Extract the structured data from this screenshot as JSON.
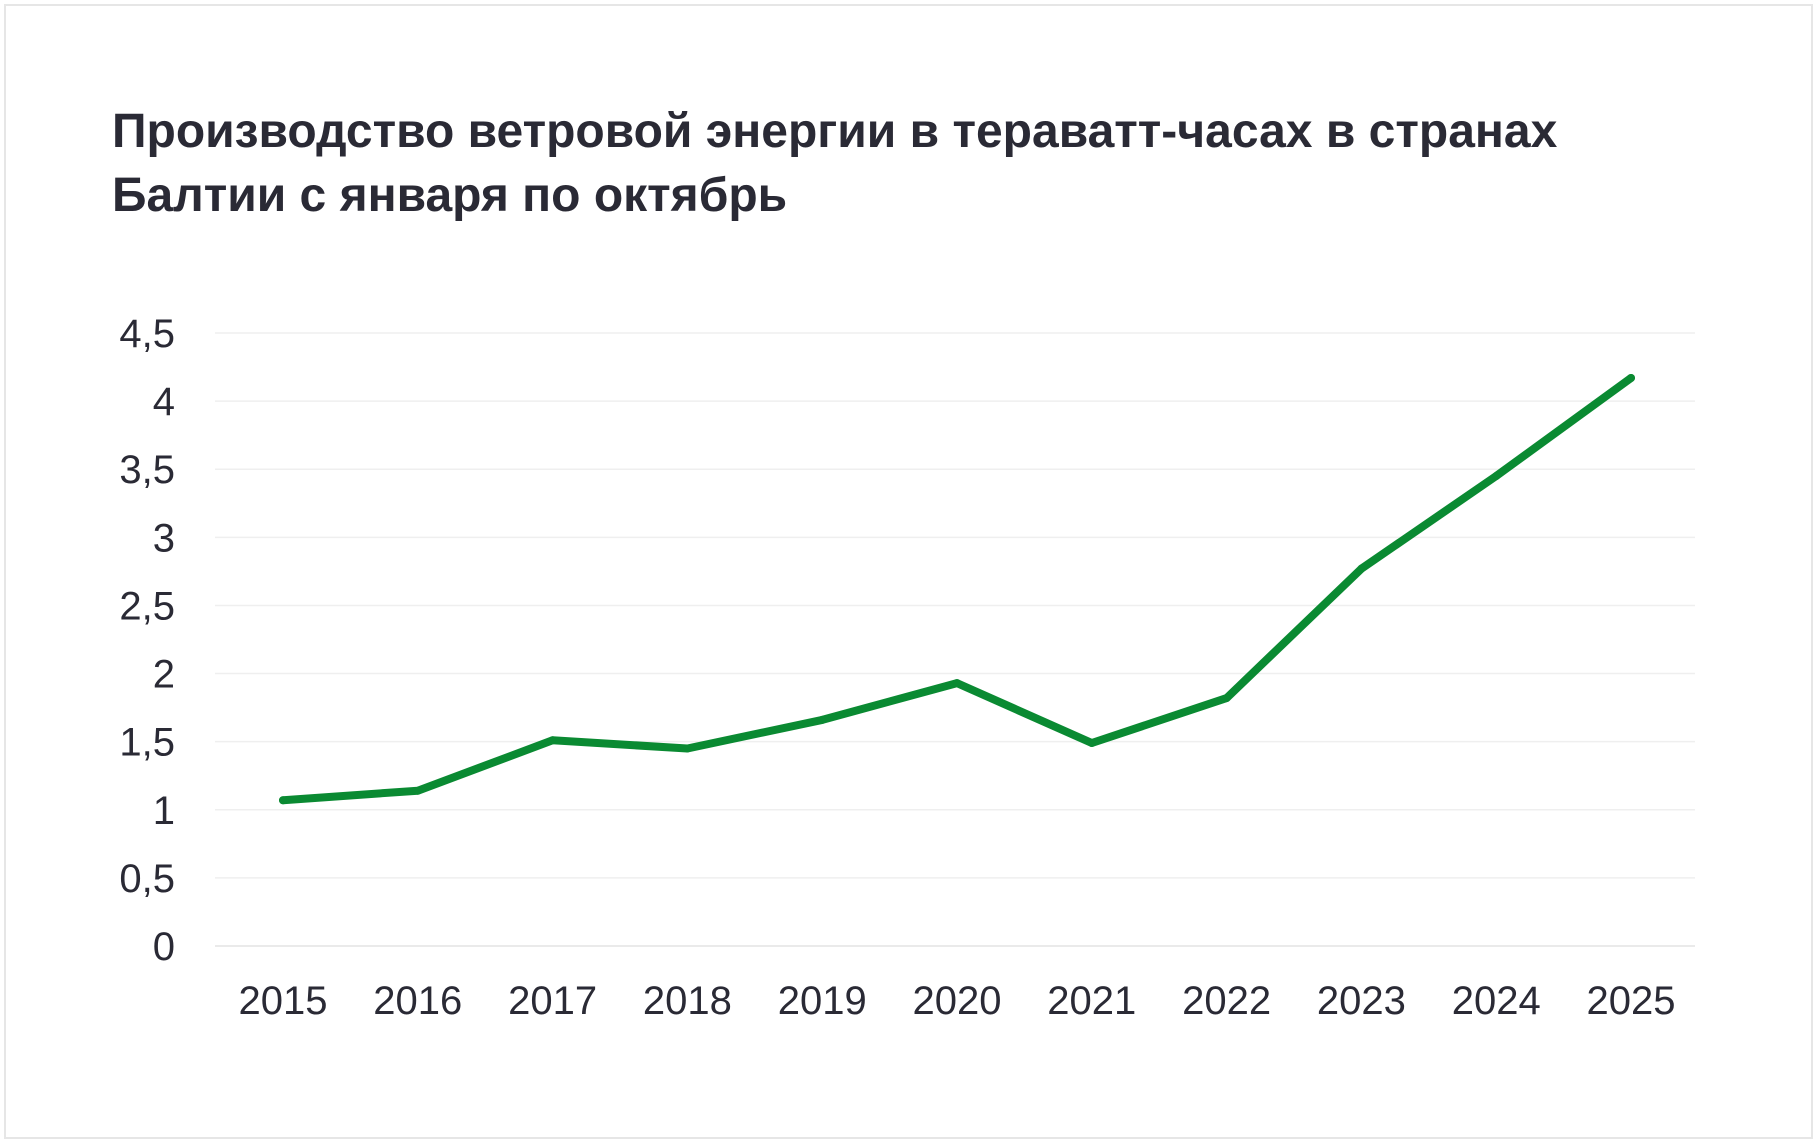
{
  "chart_data": {
    "type": "line",
    "title": "Производство ветровой энергии в тераватт-часах в странах Балтии с января по октябрь",
    "xlabel": "",
    "ylabel": "",
    "x": [
      "2015",
      "2016",
      "2017",
      "2018",
      "2019",
      "2020",
      "2021",
      "2022",
      "2023",
      "2024",
      "2025"
    ],
    "series": [
      {
        "name": "",
        "color": "#0a8a32",
        "values": [
          1.07,
          1.14,
          1.51,
          1.45,
          1.66,
          1.93,
          1.49,
          1.82,
          2.77,
          3.45,
          4.17
        ]
      }
    ],
    "ylim": [
      0,
      4.5
    ],
    "yticks": [
      0,
      0.5,
      1,
      1.5,
      2,
      2.5,
      3,
      3.5,
      4,
      4.5
    ],
    "ytick_labels": [
      "0",
      "0,5",
      "1",
      "1,5",
      "2",
      "2,5",
      "3",
      "3,5",
      "4",
      "4,5"
    ],
    "grid": true,
    "legend": "none"
  }
}
